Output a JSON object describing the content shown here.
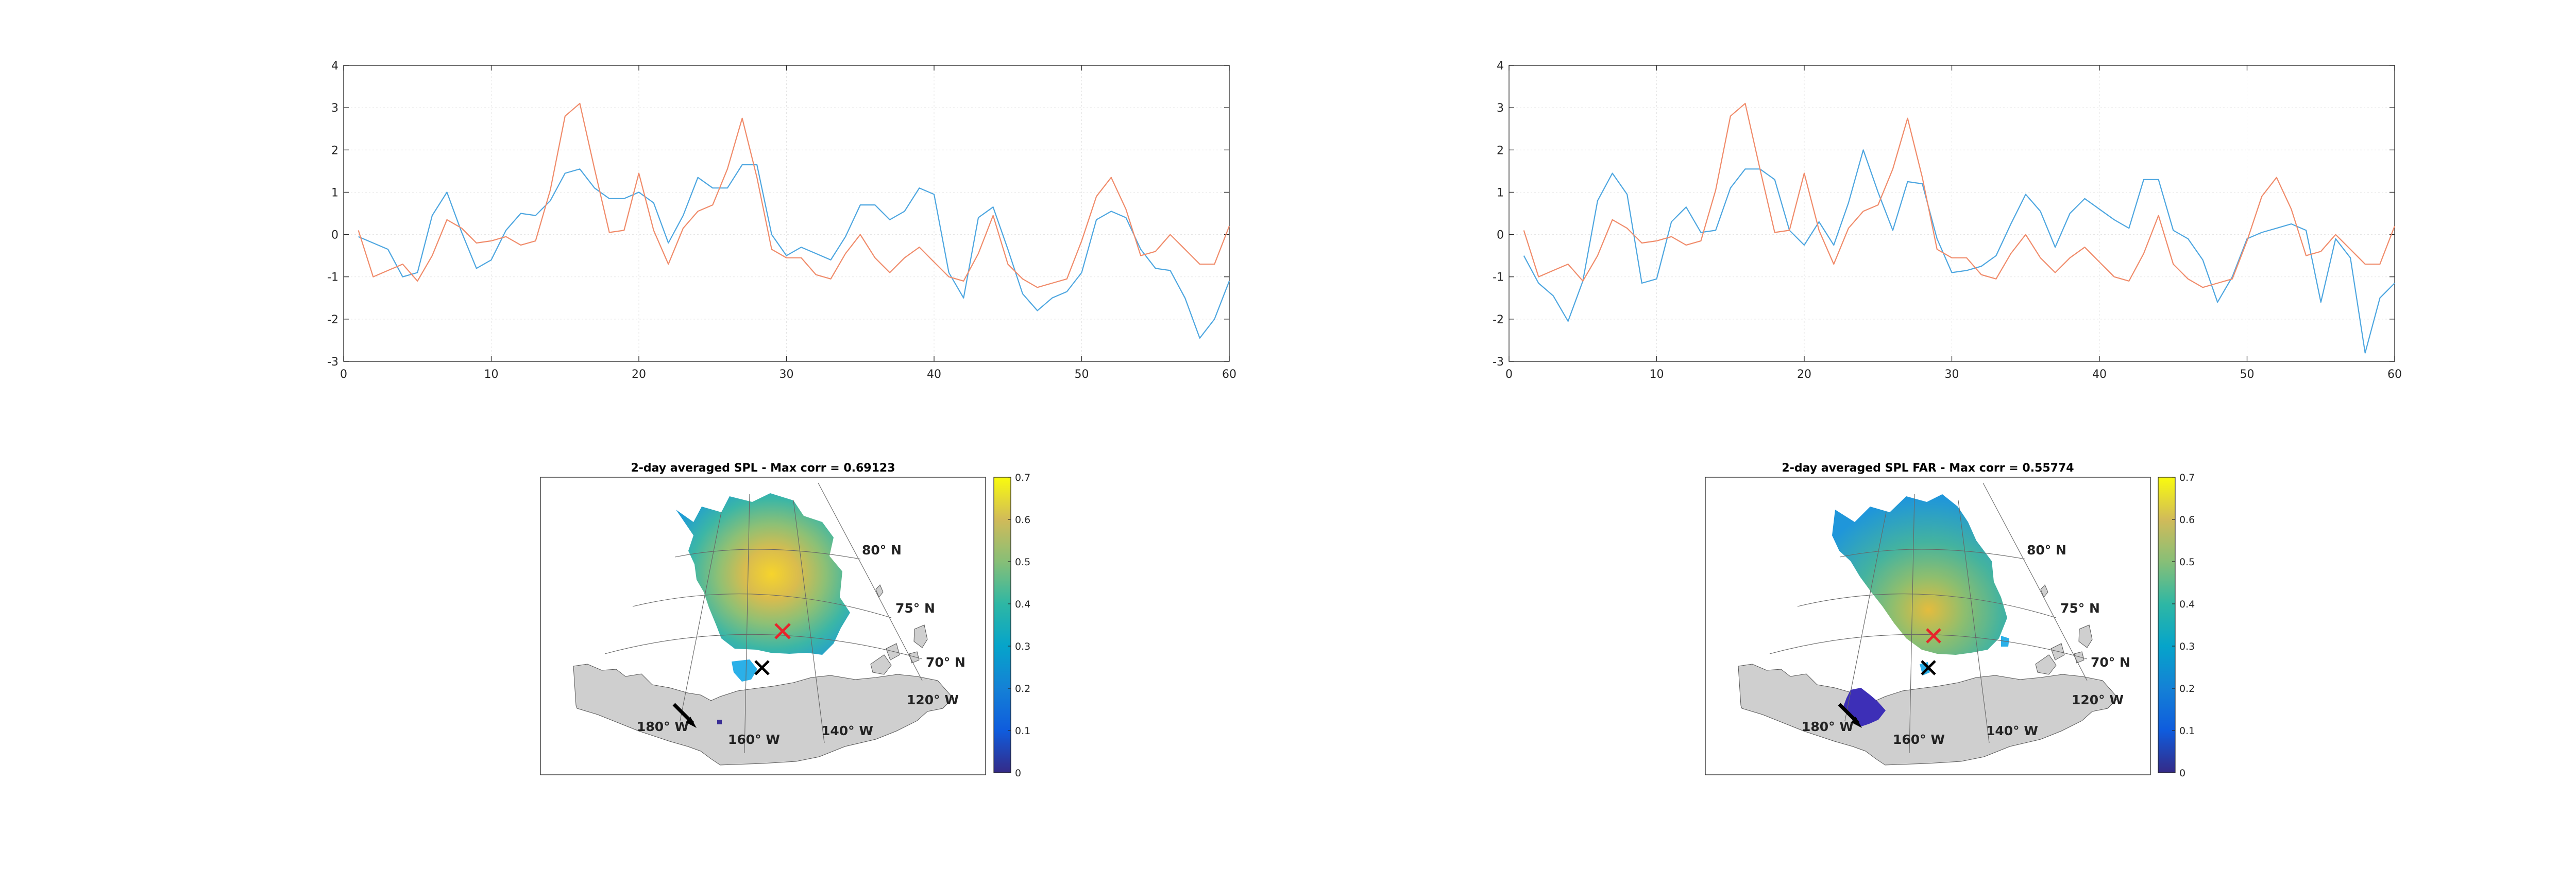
{
  "colors": {
    "series_blue": "#4DA6E0",
    "series_orange": "#F08B6A",
    "axis": "#262626",
    "grid": "#E6E6E6",
    "land": "#CFCFCF",
    "cross_red": "#E8242B",
    "cross_black": "#000000"
  },
  "chart_data": [
    {
      "type": "line",
      "title": "",
      "xlabel": "",
      "ylabel": "",
      "xlim": [
        0,
        60
      ],
      "ylim": [
        -3,
        4
      ],
      "xticks": [
        0,
        10,
        20,
        30,
        40,
        50,
        60
      ],
      "yticks": [
        -3,
        -2,
        -1,
        0,
        1,
        2,
        3,
        4
      ],
      "grid": true,
      "x": [
        1,
        2,
        3,
        4,
        5,
        6,
        7,
        8,
        9,
        10,
        11,
        12,
        13,
        14,
        15,
        16,
        17,
        18,
        19,
        20,
        21,
        22,
        23,
        24,
        25,
        26,
        27,
        28,
        29,
        30,
        31,
        32,
        33,
        34,
        35,
        36,
        37,
        38,
        39,
        40,
        41,
        42,
        43,
        44,
        45,
        46,
        47,
        48,
        49,
        50,
        51,
        52,
        53,
        54,
        55,
        56,
        57,
        58,
        59,
        60
      ],
      "series": [
        {
          "color": "#4DA6E0",
          "values": [
            -0.05,
            -0.2,
            -0.35,
            -1.0,
            -0.9,
            0.45,
            1.0,
            0.05,
            -0.8,
            -0.6,
            0.1,
            0.5,
            0.45,
            0.8,
            1.45,
            1.55,
            1.1,
            0.85,
            0.85,
            1.0,
            0.75,
            -0.2,
            0.45,
            1.35,
            1.1,
            1.1,
            1.65,
            1.65,
            0.0,
            -0.5,
            -0.3,
            -0.45,
            -0.6,
            -0.05,
            0.7,
            0.7,
            0.35,
            0.55,
            1.1,
            0.95,
            -0.9,
            -1.5,
            0.4,
            0.65,
            -0.35,
            -1.4,
            -1.8,
            -1.5,
            -1.35,
            -0.9,
            0.35,
            0.55,
            0.4,
            -0.35,
            -0.8,
            -0.85,
            -1.5,
            -2.45,
            -2.0,
            -1.1
          ]
        },
        {
          "color": "#F08B6A",
          "values": [
            0.1,
            -1.0,
            -0.85,
            -0.7,
            -1.1,
            -0.5,
            0.35,
            0.15,
            -0.2,
            -0.15,
            -0.05,
            -0.25,
            -0.15,
            1.05,
            2.8,
            3.1,
            1.55,
            0.05,
            0.1,
            1.45,
            0.1,
            -0.7,
            0.15,
            0.55,
            0.7,
            1.55,
            2.75,
            1.35,
            -0.35,
            -0.55,
            -0.55,
            -0.95,
            -1.05,
            -0.45,
            0.0,
            -0.55,
            -0.9,
            -0.55,
            -0.3,
            -0.65,
            -1.0,
            -1.1,
            -0.45,
            0.45,
            -0.7,
            -1.05,
            -1.25,
            -1.15,
            -1.05,
            -0.15,
            0.9,
            1.35,
            0.6,
            -0.5,
            -0.4,
            0.0,
            -0.35,
            -0.7,
            -0.7,
            0.2
          ]
        }
      ]
    },
    {
      "type": "line",
      "title": "",
      "xlabel": "",
      "ylabel": "",
      "xlim": [
        0,
        60
      ],
      "ylim": [
        -3,
        4
      ],
      "xticks": [
        0,
        10,
        20,
        30,
        40,
        50,
        60
      ],
      "yticks": [
        -3,
        -2,
        -1,
        0,
        1,
        2,
        3,
        4
      ],
      "grid": true,
      "x": [
        1,
        2,
        3,
        4,
        5,
        6,
        7,
        8,
        9,
        10,
        11,
        12,
        13,
        14,
        15,
        16,
        17,
        18,
        19,
        20,
        21,
        22,
        23,
        24,
        25,
        26,
        27,
        28,
        29,
        30,
        31,
        32,
        33,
        34,
        35,
        36,
        37,
        38,
        39,
        40,
        41,
        42,
        43,
        44,
        45,
        46,
        47,
        48,
        49,
        50,
        51,
        52,
        53,
        54,
        55,
        56,
        57,
        58,
        59,
        60
      ],
      "series": [
        {
          "color": "#4DA6E0",
          "values": [
            -0.5,
            -1.15,
            -1.45,
            -2.05,
            -1.1,
            0.8,
            1.45,
            0.95,
            -1.15,
            -1.05,
            0.3,
            0.65,
            0.05,
            0.1,
            1.1,
            1.55,
            1.55,
            1.3,
            0.1,
            -0.25,
            0.3,
            -0.25,
            0.75,
            2.0,
            1.0,
            0.1,
            1.25,
            1.2,
            -0.1,
            -0.9,
            -0.85,
            -0.75,
            -0.5,
            0.25,
            0.95,
            0.55,
            -0.3,
            0.5,
            0.85,
            0.6,
            0.35,
            0.15,
            1.3,
            1.3,
            0.1,
            -0.1,
            -0.6,
            -1.6,
            -1.0,
            -0.1,
            0.05,
            0.15,
            0.25,
            0.1,
            -1.6,
            -0.1,
            -0.55,
            -2.8,
            -1.5,
            -1.15
          ]
        },
        {
          "color": "#F08B6A",
          "values": [
            0.1,
            -1.0,
            -0.85,
            -0.7,
            -1.1,
            -0.5,
            0.35,
            0.15,
            -0.2,
            -0.15,
            -0.05,
            -0.25,
            -0.15,
            1.05,
            2.8,
            3.1,
            1.55,
            0.05,
            0.1,
            1.45,
            0.1,
            -0.7,
            0.15,
            0.55,
            0.7,
            1.55,
            2.75,
            1.35,
            -0.35,
            -0.55,
            -0.55,
            -0.95,
            -1.05,
            -0.45,
            0.0,
            -0.55,
            -0.9,
            -0.55,
            -0.3,
            -0.65,
            -1.0,
            -1.1,
            -0.45,
            0.45,
            -0.7,
            -1.05,
            -1.25,
            -1.15,
            -1.05,
            -0.15,
            0.9,
            1.35,
            0.6,
            -0.5,
            -0.4,
            0.0,
            -0.35,
            -0.7,
            -0.7,
            0.2
          ]
        }
      ]
    },
    {
      "type": "heatmap",
      "title": "2-day averaged SPL - Max corr = 0.69123",
      "colorbar": {
        "min": 0,
        "max": 0.7,
        "ticks": [
          0,
          0.1,
          0.2,
          0.3,
          0.4,
          0.5,
          0.6,
          0.7
        ],
        "colormap": "parula"
      },
      "lat_labels": [
        "80° N",
        "75° N",
        "70° N"
      ],
      "lon_labels": [
        "180° W",
        "160° W",
        "140° W",
        "120° W"
      ],
      "max_corr": 0.69123
    },
    {
      "type": "heatmap",
      "title": "2-day averaged SPL FAR - Max corr = 0.55774",
      "colorbar": {
        "min": 0,
        "max": 0.7,
        "ticks": [
          0,
          0.1,
          0.2,
          0.3,
          0.4,
          0.5,
          0.6,
          0.7
        ],
        "colormap": "parula"
      },
      "lat_labels": [
        "80° N",
        "75° N",
        "70° N"
      ],
      "lon_labels": [
        "180° W",
        "160° W",
        "140° W",
        "120° W"
      ],
      "max_corr": 0.55774
    }
  ]
}
